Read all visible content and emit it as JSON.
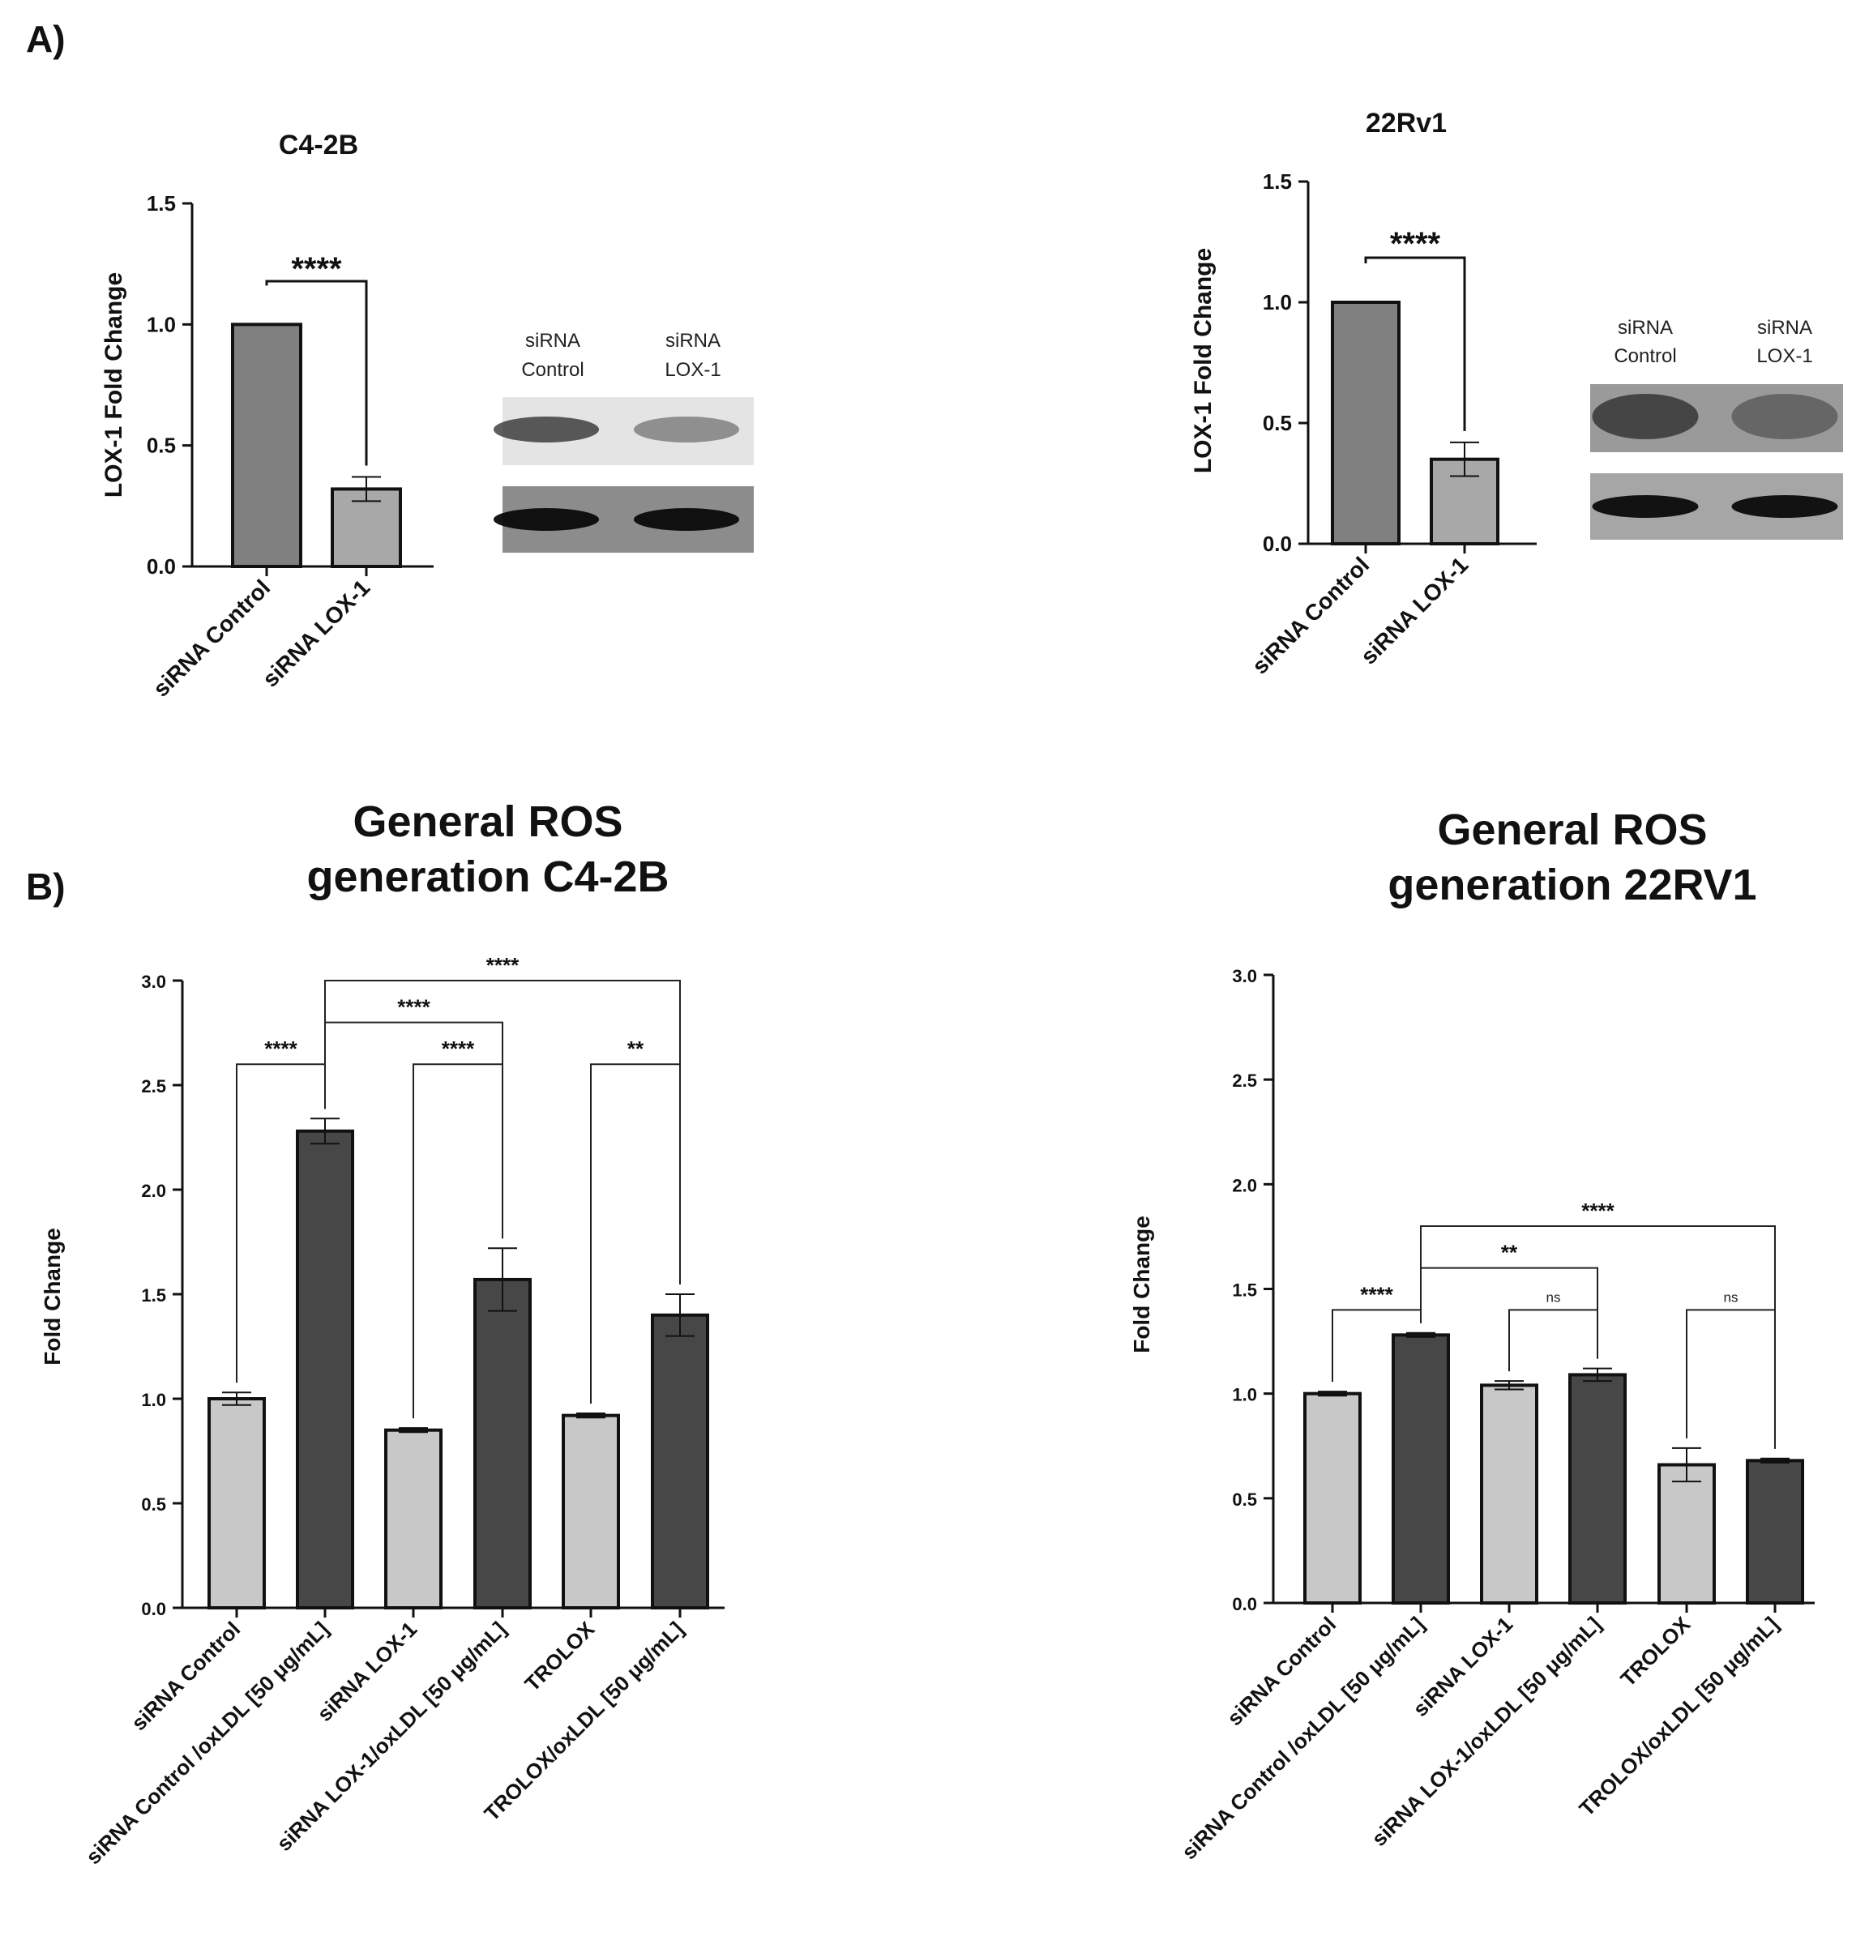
{
  "panels": {
    "a": "A)",
    "b": "B)"
  },
  "chart_data": [
    {
      "id": "a1",
      "type": "bar",
      "title": "C4-2B",
      "ylabel": "LOX-1 Fold Change",
      "ylim": [
        0,
        1.5
      ],
      "yticks": [
        "0.0",
        "0.5",
        "1.0",
        "1.5"
      ],
      "categories": [
        "siRNA Control",
        "siRNA LOX-1"
      ],
      "values": [
        1.0,
        0.32
      ],
      "errors": [
        0,
        0.05
      ],
      "bar_colors": [
        "#808080",
        "#a8a8a8"
      ],
      "significance": [
        {
          "from": 0,
          "to": 1,
          "label": "****"
        }
      ],
      "blot": {
        "lanes": [
          "siRNA\nControl",
          "siRNA\nLOX-1"
        ]
      }
    },
    {
      "id": "a2",
      "type": "bar",
      "title": "22Rv1",
      "ylabel": "LOX-1 Fold Change",
      "ylim": [
        0,
        1.5
      ],
      "yticks": [
        "0.0",
        "0.5",
        "1.0",
        "1.5"
      ],
      "categories": [
        "siRNA Control",
        "siRNA LOX-1"
      ],
      "values": [
        1.0,
        0.35
      ],
      "errors": [
        0,
        0.07
      ],
      "bar_colors": [
        "#808080",
        "#a8a8a8"
      ],
      "significance": [
        {
          "from": 0,
          "to": 1,
          "label": "****"
        }
      ],
      "blot": {
        "lanes": [
          "siRNA\nControl",
          "siRNA\nLOX-1"
        ]
      }
    },
    {
      "id": "b1",
      "type": "bar",
      "title": "General ROS\ngeneration C4-2B",
      "ylabel": "Fold Change",
      "ylim": [
        0,
        3.0
      ],
      "yticks": [
        "0.0",
        "0.5",
        "1.0",
        "1.5",
        "2.0",
        "2.5",
        "3.0"
      ],
      "categories": [
        "siRNA Control",
        "siRNA Control /oxLDL [50 μg/mL]",
        "siRNA LOX-1",
        "siRNA LOX-1/oxLDL [50 μg/mL]",
        "TROLOX",
        "TROLOX/oxLDL [50 μg/mL]"
      ],
      "values": [
        1.0,
        2.28,
        0.85,
        1.57,
        0.92,
        1.4
      ],
      "errors": [
        0.03,
        0.06,
        0.01,
        0.15,
        0.01,
        0.1
      ],
      "bar_colors": [
        "#c8c8c8",
        "#474747",
        "#c8c8c8",
        "#474747",
        "#c8c8c8",
        "#474747"
      ],
      "significance": [
        {
          "from": 0,
          "to": 1,
          "label": "****",
          "level": 2.6
        },
        {
          "from": 2,
          "to": 3,
          "label": "****",
          "level": 2.6
        },
        {
          "from": 4,
          "to": 5,
          "label": "**",
          "level": 2.6
        },
        {
          "from": 1,
          "to": 3,
          "label": "****",
          "level": 2.8
        },
        {
          "from": 1,
          "to": 5,
          "label": "****",
          "level": 3.0
        }
      ]
    },
    {
      "id": "b2",
      "type": "bar",
      "title": "General ROS\ngeneration 22RV1",
      "ylabel": "Fold Change",
      "ylim": [
        0,
        3.0
      ],
      "yticks": [
        "0.0",
        "0.5",
        "1.0",
        "1.5",
        "2.0",
        "2.5",
        "3.0"
      ],
      "categories": [
        "siRNA Control",
        "siRNA Control /oxLDL [50 μg/mL]",
        "siRNA LOX-1",
        "siRNA LOX-1/oxLDL [50 μg/mL]",
        "TROLOX",
        "TROLOX/oxLDL [50 μg/mL]"
      ],
      "values": [
        1.0,
        1.28,
        1.04,
        1.09,
        0.66,
        0.68
      ],
      "errors": [
        0.01,
        0.01,
        0.02,
        0.03,
        0.08,
        0.01
      ],
      "bar_colors": [
        "#c8c8c8",
        "#474747",
        "#c8c8c8",
        "#474747",
        "#c8c8c8",
        "#474747"
      ],
      "significance": [
        {
          "from": 0,
          "to": 1,
          "label": "****",
          "level": 1.4
        },
        {
          "from": 2,
          "to": 3,
          "label": "ns",
          "level": 1.4
        },
        {
          "from": 4,
          "to": 5,
          "label": "ns",
          "level": 1.4
        },
        {
          "from": 1,
          "to": 3,
          "label": "**",
          "level": 1.6
        },
        {
          "from": 1,
          "to": 5,
          "label": "****",
          "level": 1.8
        }
      ]
    }
  ]
}
